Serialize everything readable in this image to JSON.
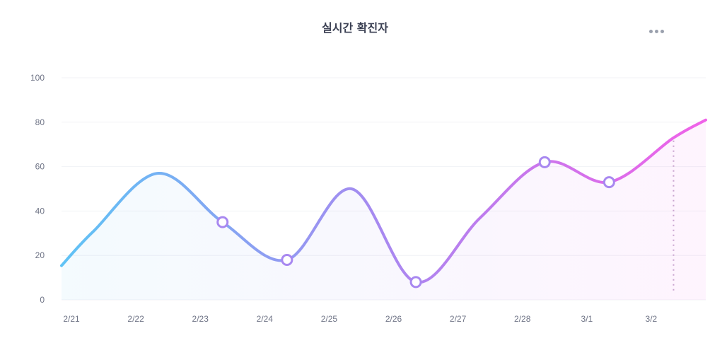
{
  "header": {
    "title": "실시간 확진자",
    "more_icon": "more-horizontal-icon"
  },
  "chart_data": {
    "type": "line",
    "title": "실시간 확진자",
    "xlabel": "",
    "ylabel": "",
    "ylim": [
      0,
      100
    ],
    "yticks": [
      "0",
      "20",
      "40",
      "60",
      "80",
      "100"
    ],
    "categories": [
      "2/21",
      "2/22",
      "2/23",
      "2/24",
      "2/25",
      "2/26",
      "2/27",
      "2/28",
      "3/1",
      "3/2"
    ],
    "series": [
      {
        "values": [
          31,
          57,
          35,
          18,
          50,
          8,
          37,
          62,
          53,
          73
        ]
      }
    ],
    "markers": [
      "2/23",
      "2/24",
      "2/26",
      "2/28",
      "3/1"
    ],
    "highlight": "3/2",
    "grid": true,
    "legend": "none",
    "colors": {
      "start": "#5fc3f5",
      "middle": "#a888f0",
      "end": "#f062e8"
    }
  }
}
